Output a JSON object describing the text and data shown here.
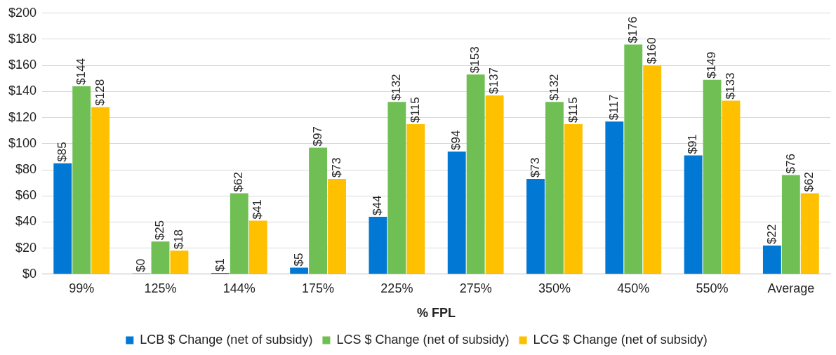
{
  "chart_data": {
    "type": "bar",
    "xlabel": "% FPL",
    "categories": [
      "99%",
      "125%",
      "144%",
      "175%",
      "225%",
      "275%",
      "350%",
      "450%",
      "550%",
      "Average"
    ],
    "series": [
      {
        "name": "LCB $ Change (net of subsidy)",
        "color": "#0078d4",
        "values": [
          85,
          0,
          1,
          5,
          44,
          94,
          73,
          117,
          91,
          22
        ],
        "value_labels": [
          "$85",
          "$0",
          "$1",
          "$5",
          "$44",
          "$94",
          "$73",
          "$117",
          "$91",
          "$22"
        ]
      },
      {
        "name": "LCS $ Change (net of subsidy)",
        "color": "#70bf54",
        "values": [
          144,
          25,
          62,
          97,
          132,
          153,
          132,
          176,
          149,
          76
        ],
        "value_labels": [
          "$144",
          "$25",
          "$62",
          "$97",
          "$132",
          "$153",
          "$132",
          "$176",
          "$149",
          "$76"
        ]
      },
      {
        "name": "LCG $ Change (net of subsidy)",
        "color": "#ffc000",
        "values": [
          128,
          18,
          41,
          73,
          115,
          137,
          115,
          160,
          133,
          62
        ],
        "value_labels": [
          "$128",
          "$18",
          "$41",
          "$73",
          "$115",
          "$137",
          "$115",
          "$160",
          "$133",
          "$62"
        ]
      }
    ],
    "ylim": [
      0,
      200
    ],
    "yticks": [
      {
        "value": 0,
        "label": "$0"
      },
      {
        "value": 20,
        "label": "$20"
      },
      {
        "value": 40,
        "label": "$40"
      },
      {
        "value": 60,
        "label": "$60"
      },
      {
        "value": 80,
        "label": "$80"
      },
      {
        "value": 100,
        "label": "$100"
      },
      {
        "value": 120,
        "label": "$120"
      },
      {
        "value": 140,
        "label": "$140"
      },
      {
        "value": 160,
        "label": "$160"
      },
      {
        "value": 180,
        "label": "$180"
      },
      {
        "value": 200,
        "label": "$200"
      }
    ],
    "grid": "y",
    "legend": "bottom"
  }
}
